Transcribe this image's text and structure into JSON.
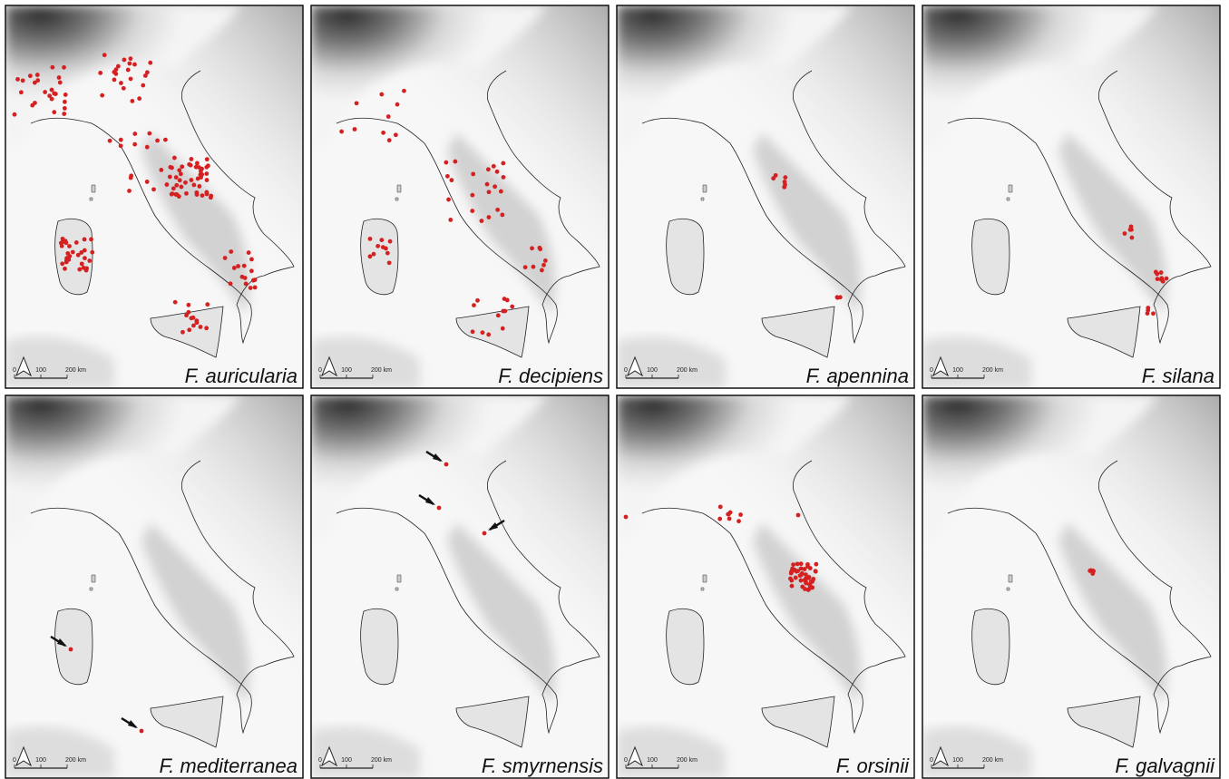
{
  "panels": [
    {
      "species": "F. auricularia"
    },
    {
      "species": "F. decipiens"
    },
    {
      "species": "F. apennina"
    },
    {
      "species": "F. silana"
    },
    {
      "species": "F. mediterranea"
    },
    {
      "species": "F. smyrnensis"
    },
    {
      "species": "F. orsinii"
    },
    {
      "species": "F. galvagnii"
    }
  ],
  "scale_bar": {
    "labels": [
      "0",
      "100",
      "200 km"
    ]
  }
}
